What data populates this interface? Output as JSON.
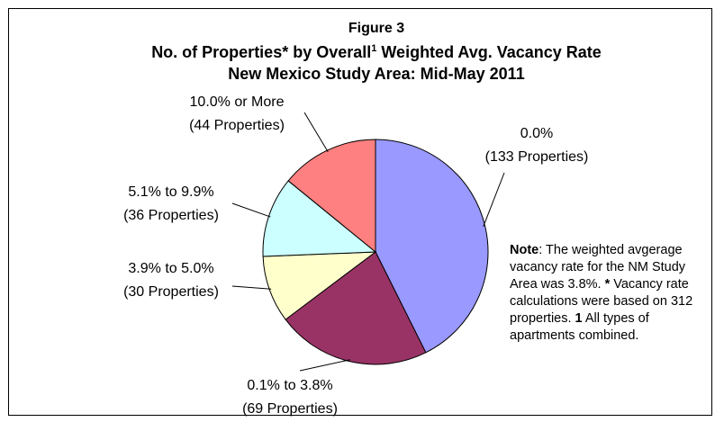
{
  "chart_data": {
    "type": "pie",
    "title": "Figure 3",
    "title_line2": [
      "No. of Properties* by Overall",
      "1",
      " Weighted Avg. Vacancy Rate"
    ],
    "title_line3": "New Mexico Study Area: Mid-May 2011",
    "categories": [
      "0.0%",
      "0.1% to 3.8%",
      "3.9% to 5.0%",
      "5.1% to 9.9%",
      "10.0% or More"
    ],
    "values": [
      133,
      69,
      30,
      36,
      44
    ],
    "value_labels": [
      "(133 Properties)",
      "(69 Properties)",
      "(30 Properties)",
      "(36 Properties)",
      "(44 Properties)"
    ],
    "colors": [
      "#9999ff",
      "#993366",
      "#ffffcc",
      "#ccffff",
      "#ff8080"
    ],
    "note": [
      "Note",
      ": The weighted avgerage vacancy rate for the NM Study Area was 3.8%.  ",
      "*",
      " Vacancy rate calculations were based on 312 properties.  ",
      "1",
      " All types of apartments combined."
    ]
  }
}
